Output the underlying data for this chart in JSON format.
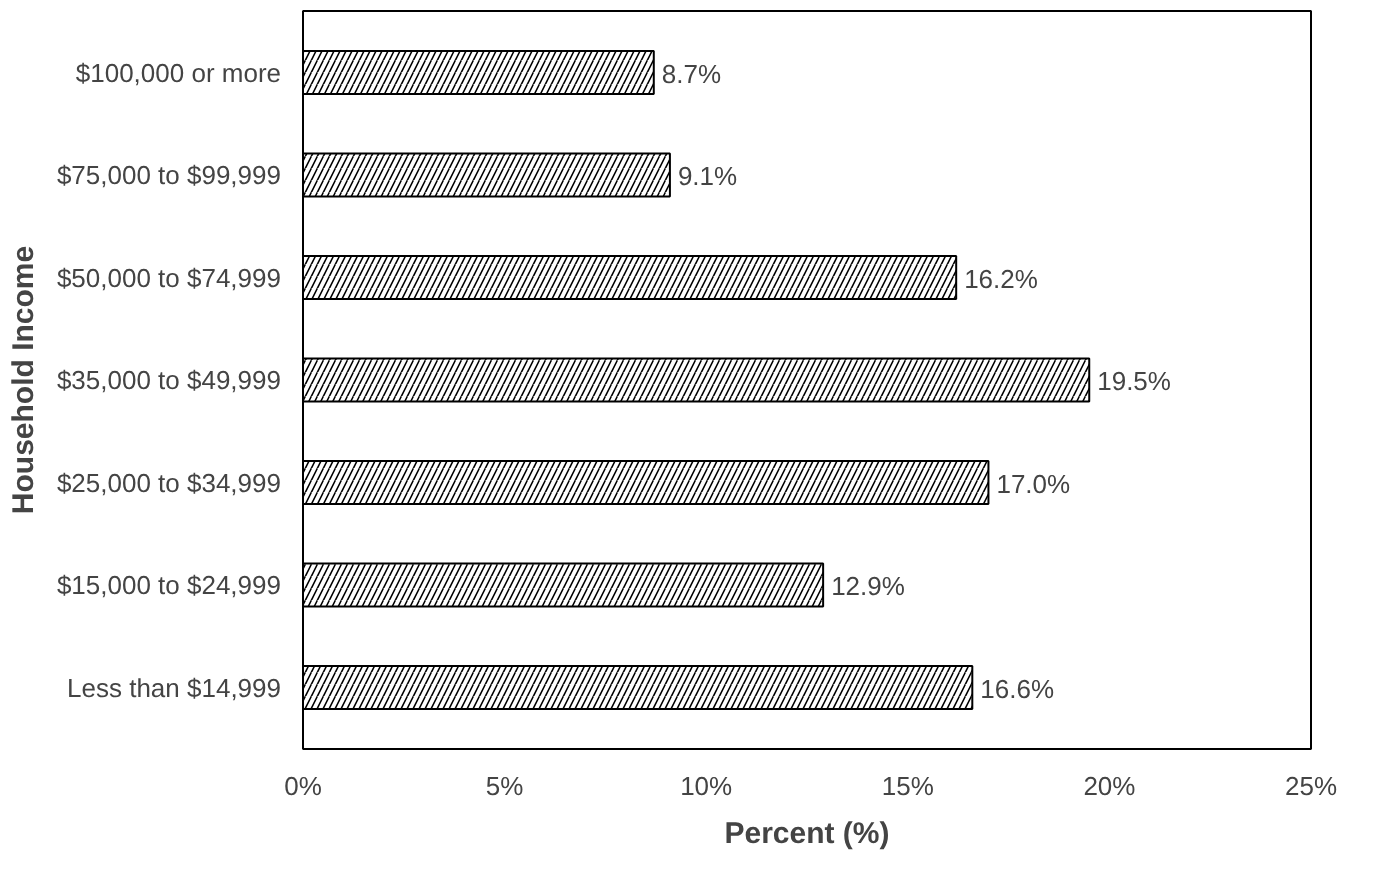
{
  "chart_data": {
    "type": "bar",
    "orientation": "horizontal",
    "xlabel": "Percent (%)",
    "ylabel": "Household Income",
    "categories": [
      "$100,000 or more",
      "$75,000 to $99,999",
      "$50,000 to $74,999",
      "$35,000 to $49,999",
      "$25,000 to $34,999",
      "$15,000 to $24,999",
      "Less than $14,999"
    ],
    "values": [
      8.7,
      9.1,
      16.2,
      19.5,
      17.0,
      12.9,
      16.6
    ],
    "value_labels": [
      "8.7%",
      "9.1%",
      "16.2%",
      "19.5%",
      "17.0%",
      "12.9%",
      "16.6%"
    ],
    "color": "#ffffff",
    "xlim": [
      0,
      25
    ],
    "xticks": [
      {
        "value": 0,
        "label": "0%"
      },
      {
        "value": 5,
        "label": "5%"
      },
      {
        "value": 10,
        "label": "10%"
      },
      {
        "value": 15,
        "label": "15%"
      },
      {
        "value": 20,
        "label": "20%"
      },
      {
        "value": 25,
        "label": "25%"
      }
    ],
    "grid": false
  }
}
